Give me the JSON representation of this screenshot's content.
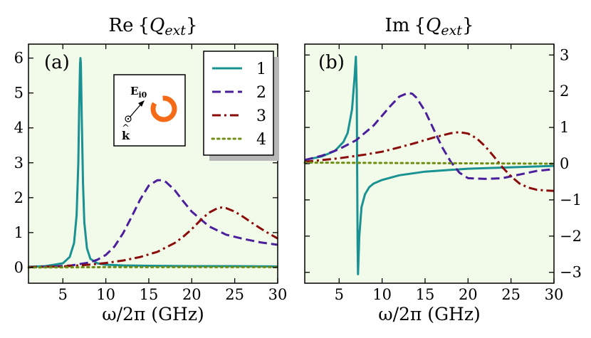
{
  "figure": {
    "xlabel": "ω/2π  (GHz)",
    "panel_a": {
      "label": "(a)",
      "title_pre": "Re",
      "title_q": "Q",
      "title_sub": "ext"
    },
    "panel_b": {
      "label": "(b)",
      "title_pre": "Im",
      "title_q": "Q",
      "title_sub": "ext"
    },
    "inset": {
      "field_label": "E",
      "field_sub": "i0",
      "k_label": "k",
      "k_hat": "^"
    },
    "colors": {
      "series1": "#1a9192",
      "series2": "#4b1f9c",
      "series3": "#8b0a0a",
      "series4": "#6e8f14",
      "panel_bg": "#f2fbe9",
      "ring": "#f56a16"
    }
  },
  "chart_data": [
    {
      "type": "line",
      "title": "Re{Qext}",
      "xlabel": "ω/2π  (GHz)",
      "ylabel": "",
      "xlim": [
        1,
        30
      ],
      "ylim": [
        -0.45,
        6.4
      ],
      "xticks": [
        5,
        10,
        15,
        20,
        25,
        30
      ],
      "yticks": [
        0,
        1,
        2,
        3,
        4,
        5,
        6
      ],
      "yaxis_side": "left",
      "legend": {
        "placement": "top-right",
        "entries": [
          "1",
          "2",
          "3",
          "4"
        ]
      },
      "series": [
        {
          "name": "1",
          "style": "solid",
          "color": "#1a9192",
          "x": [
            1,
            3,
            5,
            5.8,
            6.3,
            6.6,
            6.8,
            6.9,
            7.0,
            7.05,
            7.1,
            7.2,
            7.35,
            7.5,
            7.8,
            8.2,
            9,
            10,
            12,
            15,
            20,
            25,
            30
          ],
          "y": [
            0.02,
            0.04,
            0.12,
            0.3,
            0.7,
            1.5,
            3.0,
            4.6,
            5.8,
            6.0,
            5.8,
            4.3,
            2.4,
            1.3,
            0.55,
            0.25,
            0.12,
            0.08,
            0.06,
            0.05,
            0.04,
            0.04,
            0.03
          ]
        },
        {
          "name": "2",
          "style": "dashed",
          "color": "#4b1f9c",
          "x": [
            1,
            4,
            6,
            8,
            9,
            10,
            11,
            12,
            13,
            14,
            15,
            16,
            16.5,
            17,
            18,
            19,
            20,
            22,
            24,
            26,
            28,
            30
          ],
          "y": [
            0.01,
            0.03,
            0.06,
            0.14,
            0.22,
            0.36,
            0.6,
            0.98,
            1.45,
            1.95,
            2.35,
            2.5,
            2.5,
            2.45,
            2.22,
            1.9,
            1.6,
            1.18,
            0.94,
            0.82,
            0.72,
            0.65
          ]
        },
        {
          "name": "3",
          "style": "dashdot",
          "color": "#8b0a0a",
          "x": [
            1,
            5,
            8,
            10,
            12,
            14,
            16,
            18,
            19,
            20,
            21,
            22,
            23,
            23.5,
            24,
            25,
            26,
            27,
            28,
            29,
            30
          ],
          "y": [
            0.01,
            0.03,
            0.08,
            0.13,
            0.2,
            0.3,
            0.45,
            0.7,
            0.88,
            1.1,
            1.35,
            1.57,
            1.7,
            1.72,
            1.7,
            1.6,
            1.45,
            1.28,
            1.12,
            0.97,
            0.83
          ]
        },
        {
          "name": "4",
          "style": "dotted",
          "color": "#6e8f14",
          "x": [
            1,
            10,
            20,
            30
          ],
          "y": [
            0,
            0.01,
            0.01,
            0.01
          ]
        }
      ]
    },
    {
      "type": "line",
      "title": "Im{Qext}",
      "xlabel": "ω/2π  (GHz)",
      "ylabel": "",
      "xlim": [
        1,
        30
      ],
      "ylim": [
        -3.3,
        3.3
      ],
      "xticks": [
        5,
        10,
        15,
        20,
        25,
        30
      ],
      "yticks": [
        -3,
        -2,
        -1,
        0,
        1,
        2,
        3
      ],
      "yaxis_side": "right",
      "series": [
        {
          "name": "1",
          "style": "solid",
          "color": "#1a9192",
          "x": [
            1,
            3,
            4.5,
            5.5,
            6,
            6.5,
            6.8,
            6.95,
            7.05,
            7.15,
            7.2,
            7.35,
            7.6,
            8,
            8.5,
            9,
            10,
            12,
            15,
            20,
            25,
            30
          ],
          "y": [
            0.1,
            0.2,
            0.35,
            0.6,
            0.85,
            1.5,
            2.4,
            2.95,
            2.0,
            -2.2,
            -3.05,
            -2.0,
            -1.2,
            -0.85,
            -0.65,
            -0.55,
            -0.45,
            -0.32,
            -0.22,
            -0.14,
            -0.1,
            -0.06
          ]
        },
        {
          "name": "2",
          "style": "dashed",
          "color": "#4b1f9c",
          "x": [
            1,
            3,
            5,
            7,
            9,
            11,
            12,
            13,
            13.5,
            14,
            15,
            16,
            17,
            18,
            19,
            20,
            22,
            24,
            26,
            28,
            30
          ],
          "y": [
            0.1,
            0.22,
            0.4,
            0.65,
            1.05,
            1.6,
            1.85,
            1.95,
            1.93,
            1.82,
            1.45,
            0.95,
            0.45,
            0.05,
            -0.25,
            -0.4,
            -0.42,
            -0.4,
            -0.3,
            -0.2,
            -0.15
          ]
        },
        {
          "name": "3",
          "style": "dashdot",
          "color": "#8b0a0a",
          "x": [
            1,
            5,
            8,
            10,
            12,
            14,
            16,
            18,
            19,
            20,
            21,
            22,
            23,
            24,
            25,
            26,
            27,
            28,
            29,
            30
          ],
          "y": [
            0.05,
            0.15,
            0.25,
            0.33,
            0.45,
            0.58,
            0.72,
            0.84,
            0.87,
            0.83,
            0.7,
            0.48,
            0.2,
            -0.1,
            -0.35,
            -0.55,
            -0.66,
            -0.72,
            -0.74,
            -0.75
          ]
        },
        {
          "name": "4",
          "style": "dotted",
          "color": "#6e8f14",
          "x": [
            1,
            10,
            20,
            30
          ],
          "y": [
            0.03,
            0.02,
            0.01,
            0.0
          ]
        }
      ]
    }
  ]
}
